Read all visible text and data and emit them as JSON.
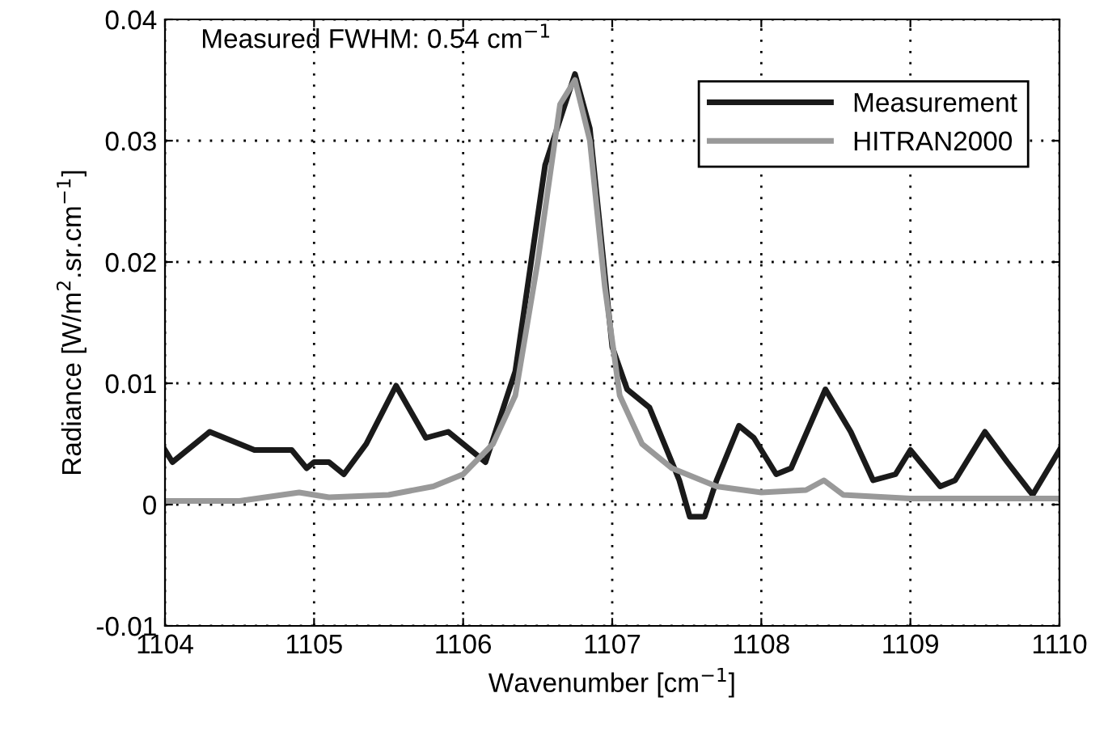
{
  "chart_data": {
    "type": "line",
    "xlabel": "Wavenumber [cm$^{−1}$]",
    "ylabel": "Radiance [W/m$^{2}$.sr.cm$^{−1}$]",
    "annotations": [
      "Measured FWHM: 0.54 cm$^{−1}$"
    ],
    "xlim": [
      1104,
      1110
    ],
    "xticks": [
      1104,
      1105,
      1106,
      1107,
      1108,
      1109,
      1110
    ],
    "ylim": [
      -0.01,
      0.04
    ],
    "yticks": [
      -0.01,
      0,
      0.01,
      0.02,
      0.03,
      0.04
    ],
    "grid": true,
    "legend": "top right",
    "line_style": "solid",
    "marker": "none",
    "series": [
      {
        "name": "Measurement",
        "color": "#1a1a1a",
        "x": [
          1104,
          1104.05,
          1104.3,
          1104.6,
          1104.85,
          1104.95,
          1105.0,
          1105.1,
          1105.2,
          1105.35,
          1105.55,
          1105.75,
          1105.9,
          1106.05,
          1106.15,
          1106.35,
          1106.55,
          1106.75,
          1106.85,
          1107.0,
          1107.1,
          1107.25,
          1107.45,
          1107.52,
          1107.62,
          1107.7,
          1107.85,
          1107.95,
          1108.1,
          1108.2,
          1108.43,
          1108.6,
          1108.75,
          1108.9,
          1109.0,
          1109.2,
          1109.3,
          1109.5,
          1109.65,
          1109.82,
          1110
        ],
        "values": [
          0.0045,
          0.0035,
          0.006,
          0.0045,
          0.0045,
          0.003,
          0.0035,
          0.0035,
          0.0025,
          0.005,
          0.0098,
          0.0055,
          0.006,
          0.0045,
          0.0035,
          0.011,
          0.028,
          0.0355,
          0.031,
          0.013,
          0.0095,
          0.008,
          0.002,
          -0.001,
          -0.001,
          0.002,
          0.0065,
          0.0055,
          0.0025,
          0.003,
          0.0095,
          0.006,
          0.002,
          0.0025,
          0.0045,
          0.0015,
          0.002,
          0.006,
          0.0035,
          0.0008,
          0.0045
        ]
      },
      {
        "name": "HITRAN2000",
        "color": "#999999",
        "x": [
          1104,
          1104.5,
          1104.9,
          1105.1,
          1105.5,
          1105.8,
          1106.0,
          1106.2,
          1106.35,
          1106.5,
          1106.65,
          1106.75,
          1106.85,
          1106.95,
          1107.05,
          1107.2,
          1107.4,
          1107.7,
          1108.0,
          1108.3,
          1108.42,
          1108.55,
          1109.0,
          1109.5,
          1110
        ],
        "values": [
          0.0003,
          0.0003,
          0.001,
          0.0006,
          0.0008,
          0.0015,
          0.0025,
          0.005,
          0.009,
          0.02,
          0.033,
          0.035,
          0.03,
          0.018,
          0.009,
          0.005,
          0.003,
          0.0015,
          0.001,
          0.0012,
          0.002,
          0.0008,
          0.0005,
          0.0005,
          0.0005
        ]
      }
    ]
  }
}
